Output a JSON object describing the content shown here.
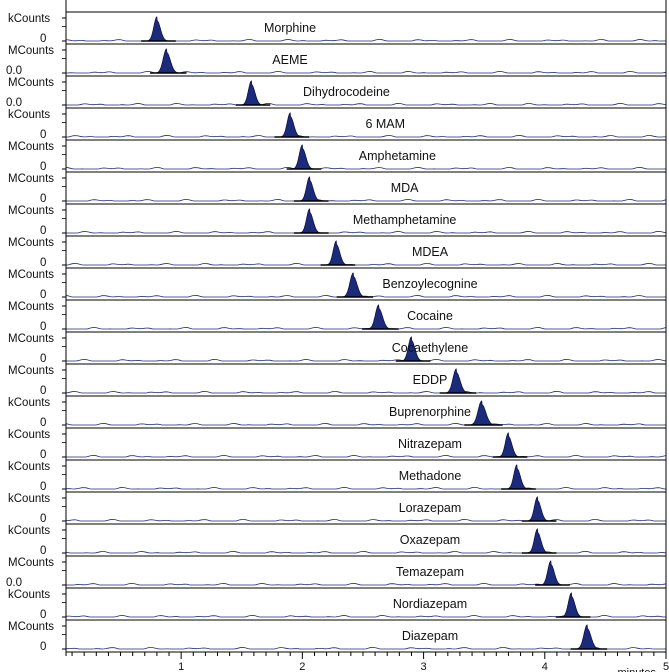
{
  "chart_data": {
    "type": "line",
    "xlabel": "minutes",
    "xlim": [
      0.05,
      5.0
    ],
    "xticks": [
      "1",
      "2",
      "3",
      "4",
      "5"
    ],
    "xtick_values": [
      1,
      2,
      3,
      4,
      5
    ],
    "fill_color": "#1c2a7a",
    "line_color": "#1c2a7a",
    "series": [
      {
        "name": "Morphine",
        "ylabel": "kCounts",
        "ybase": "0",
        "peak_rt": 0.8,
        "width": 0.055
      },
      {
        "name": "AEME",
        "ylabel": "MCounts",
        "ybase": "0.0",
        "peak_rt": 0.88,
        "width": 0.06
      },
      {
        "name": "Dihydrocodeine",
        "ylabel": "MCounts",
        "ybase": "0.0",
        "peak_rt": 1.58,
        "width": 0.055
      },
      {
        "name": "6 MAM",
        "ylabel": "kCounts",
        "ybase": "0",
        "peak_rt": 1.9,
        "width": 0.055
      },
      {
        "name": "Amphetamine",
        "ylabel": "MCounts",
        "ybase": "0",
        "peak_rt": 2.0,
        "width": 0.055
      },
      {
        "name": "MDA",
        "ylabel": "MCounts",
        "ybase": "0",
        "peak_rt": 2.06,
        "width": 0.055
      },
      {
        "name": "Methamphetamine",
        "ylabel": "MCounts",
        "ybase": "0",
        "peak_rt": 2.06,
        "width": 0.055
      },
      {
        "name": "MDEA",
        "ylabel": "MCounts",
        "ybase": "0",
        "peak_rt": 2.28,
        "width": 0.055
      },
      {
        "name": "Benzoylecognine",
        "ylabel": "MCounts",
        "ybase": "0",
        "peak_rt": 2.42,
        "width": 0.06
      },
      {
        "name": "Cocaine",
        "ylabel": "MCounts",
        "ybase": "0",
        "peak_rt": 2.63,
        "width": 0.06
      },
      {
        "name": "Cocaethylene",
        "ylabel": "MCounts",
        "ybase": "0",
        "peak_rt": 2.9,
        "width": 0.055
      },
      {
        "name": "EDDP",
        "ylabel": "MCounts",
        "ybase": "0",
        "peak_rt": 3.27,
        "width": 0.06
      },
      {
        "name": "Buprenorphine",
        "ylabel": "kCounts",
        "ybase": "0",
        "peak_rt": 3.48,
        "width": 0.065
      },
      {
        "name": "Nitrazepam",
        "ylabel": "kCounts",
        "ybase": "0",
        "peak_rt": 3.7,
        "width": 0.055
      },
      {
        "name": "Methadone",
        "ylabel": "kCounts",
        "ybase": "0",
        "peak_rt": 3.77,
        "width": 0.055
      },
      {
        "name": "Lorazepam",
        "ylabel": "kCounts",
        "ybase": "0",
        "peak_rt": 3.94,
        "width": 0.055
      },
      {
        "name": "Oxazepam",
        "ylabel": "kCounts",
        "ybase": "0",
        "peak_rt": 3.94,
        "width": 0.055
      },
      {
        "name": "Temazepam",
        "ylabel": "MCounts",
        "ybase": "0.0",
        "peak_rt": 4.05,
        "width": 0.055
      },
      {
        "name": "Nordiazepam",
        "ylabel": "kCounts",
        "ybase": "0",
        "peak_rt": 4.22,
        "width": 0.055
      },
      {
        "name": "Diazepam",
        "ylabel": "MCounts",
        "ybase": "0",
        "peak_rt": 4.35,
        "width": 0.06
      }
    ]
  }
}
